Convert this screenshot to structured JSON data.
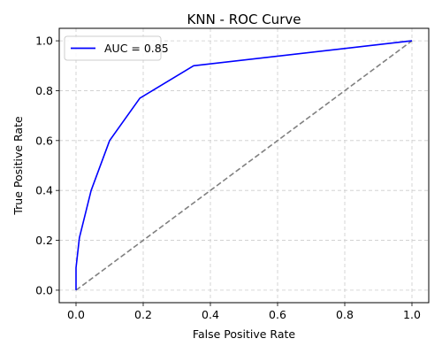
{
  "chart_data": {
    "type": "line",
    "title": "KNN - ROC Curve",
    "xlabel": "False Positive Rate",
    "ylabel": "True Positive Rate",
    "xlim": [
      -0.05,
      1.05
    ],
    "ylim": [
      -0.05,
      1.05
    ],
    "xticks": [
      0.0,
      0.2,
      0.4,
      0.6,
      0.8,
      1.0
    ],
    "yticks": [
      0.0,
      0.2,
      0.4,
      0.6,
      0.8,
      1.0
    ],
    "xtick_labels": [
      "0.0",
      "0.2",
      "0.4",
      "0.6",
      "0.8",
      "1.0"
    ],
    "ytick_labels": [
      "0.0",
      "0.2",
      "0.4",
      "0.6",
      "0.8",
      "1.0"
    ],
    "grid": true,
    "legend": {
      "placement": "upper-left"
    },
    "series": [
      {
        "name": "AUC = 0.85",
        "color": "#0000ff",
        "style": "solid",
        "x": [
          0.0,
          0.0,
          0.01,
          0.045,
          0.1,
          0.19,
          0.35,
          1.0
        ],
        "y": [
          0.0,
          0.09,
          0.21,
          0.4,
          0.6,
          0.77,
          0.9,
          1.0
        ]
      },
      {
        "color": "#808080",
        "style": "dashed",
        "x": [
          0.0,
          1.0
        ],
        "y": [
          0.0,
          1.0
        ]
      }
    ]
  }
}
